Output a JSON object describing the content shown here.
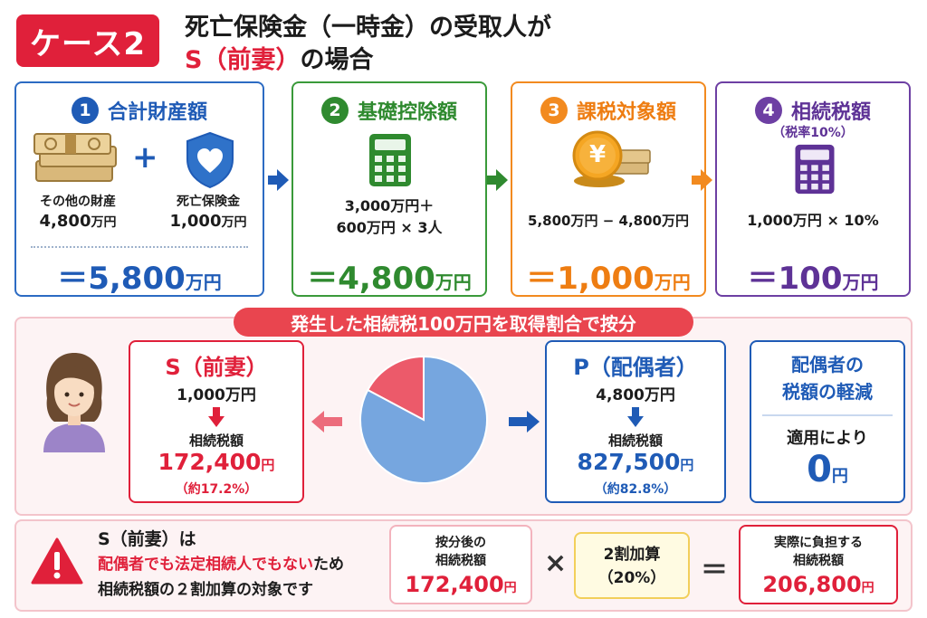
{
  "header": {
    "case_label": "ケース2",
    "line1": "死亡保険金（一時金）の受取人が",
    "line2_red": "S（前妻）",
    "line2_rest": "の場合"
  },
  "steps": [
    {
      "num": "1",
      "title": "合計財産額",
      "items": [
        {
          "label": "その他の財産",
          "value": "4,800",
          "unit": "万円"
        },
        {
          "label": "死亡保険金",
          "value": "1,000",
          "unit": "万円"
        }
      ],
      "plus": "+",
      "result_prefix": "＝",
      "result_value": "5,800",
      "result_unit": "万円"
    },
    {
      "num": "2",
      "title": "基礎控除額",
      "line1": "3,000万円＋",
      "line2": "600万円 × 3人",
      "result_prefix": "＝",
      "result_value": "4,800",
      "result_unit": "万円"
    },
    {
      "num": "3",
      "title": "課税対象額",
      "line1": "5,800万円 − 4,800万円",
      "coin_symbol": "¥",
      "result_prefix": "＝",
      "result_value": "1,000",
      "result_unit": "万円"
    },
    {
      "num": "4",
      "title": "相続税額",
      "subnote": "（税率10%）",
      "line1": "1,000万円 × 10%",
      "result_prefix": "＝",
      "result_value": "100",
      "result_unit": "万円"
    }
  ],
  "split": {
    "banner": "発生した相続税100万円を取得割合で按分",
    "s": {
      "title": "S（前妻）",
      "amount": "1,000万円",
      "tax_label": "相続税額",
      "tax_value": "172,400",
      "tax_unit": "円",
      "pct": "（約17.2%）"
    },
    "p": {
      "title": "P（配偶者）",
      "amount": "4,800万円",
      "tax_label": "相続税額",
      "tax_value": "827,500",
      "tax_unit": "円",
      "pct": "（約82.8%）"
    },
    "reduction": {
      "title1": "配偶者の",
      "title2": "税額の軽減",
      "note": "適用により",
      "value": "0",
      "unit": "円"
    }
  },
  "chart_data": {
    "type": "pie",
    "categories": [
      "S（前妻）",
      "P（配偶者）"
    ],
    "values": [
      17.2,
      82.8
    ],
    "colors": [
      "#ec5a6a",
      "#76a6df"
    ]
  },
  "bottom": {
    "warn_line1": "S（前妻）は",
    "warn_line2": "配偶者でも法定相続人でもない",
    "warn_line2_tail": "ため",
    "warn_line3": "相続税額の２割加算の対象です",
    "box1_label1": "按分後の",
    "box1_label2": "相続税額",
    "box1_value": "172,400",
    "box1_unit": "円",
    "times": "×",
    "box2_line1": "2割加算",
    "box2_line2": "（20%）",
    "equals": "＝",
    "box3_label1": "実際に負担する",
    "box3_label2": "相続税額",
    "box3_value": "206,800",
    "box3_unit": "円"
  },
  "colors": {
    "red": "#e0203a",
    "blue": "#1f5bb6",
    "green": "#2f8a2f",
    "orange": "#ee7d12",
    "purple": "#5e3296"
  },
  "icons": [
    "money-bundle-icon",
    "shield-heart-icon",
    "calculator-icon",
    "yen-coin-icon",
    "woman-avatar-icon",
    "warning-icon"
  ]
}
